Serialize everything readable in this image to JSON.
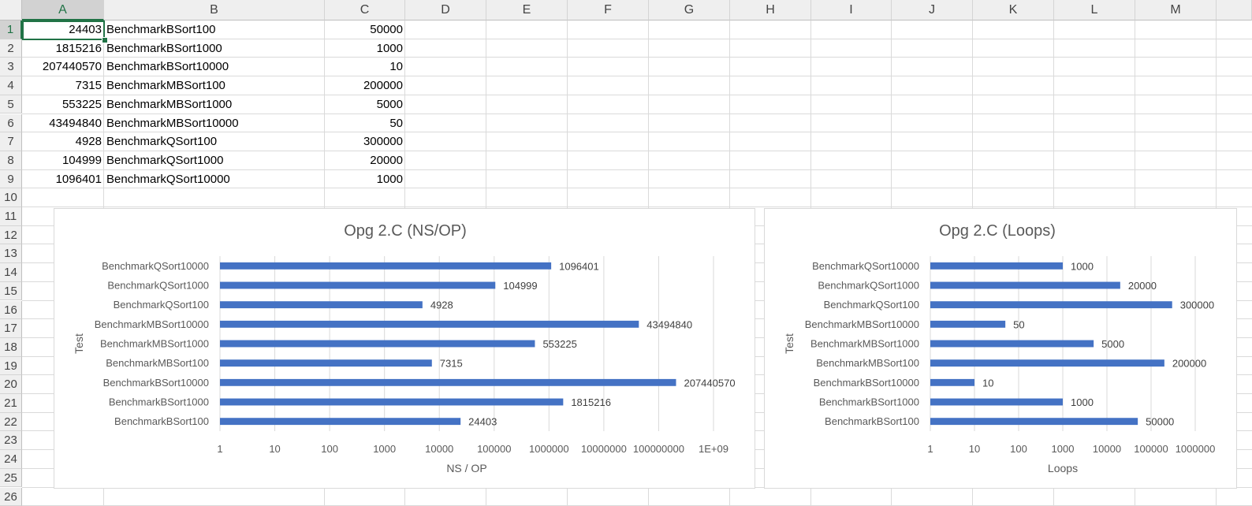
{
  "sheet": {
    "columns": [
      "A",
      "B",
      "C",
      "D",
      "E",
      "F",
      "G",
      "H",
      "I",
      "J",
      "K",
      "L",
      "M"
    ],
    "selected_column": "A",
    "rows": [
      "1",
      "2",
      "3",
      "4",
      "5",
      "6",
      "7",
      "8",
      "9",
      "10",
      "11",
      "12",
      "13",
      "14",
      "15",
      "16",
      "17",
      "18",
      "19",
      "20",
      "21",
      "22",
      "23",
      "24",
      "25",
      "26"
    ],
    "selected_row": "1",
    "data": [
      {
        "a": "24403",
        "b": "BenchmarkBSort100",
        "c": "50000"
      },
      {
        "a": "1815216",
        "b": "BenchmarkBSort1000",
        "c": "1000"
      },
      {
        "a": "207440570",
        "b": "BenchmarkBSort10000",
        "c": "10"
      },
      {
        "a": "7315",
        "b": "BenchmarkMBSort100",
        "c": "200000"
      },
      {
        "a": "553225",
        "b": "BenchmarkMBSort1000",
        "c": "5000"
      },
      {
        "a": "43494840",
        "b": "BenchmarkMBSort10000",
        "c": "50"
      },
      {
        "a": "4928",
        "b": "BenchmarkQSort100",
        "c": "300000"
      },
      {
        "a": "104999",
        "b": "BenchmarkQSort1000",
        "c": "20000"
      },
      {
        "a": "1096401",
        "b": "BenchmarkQSort10000",
        "c": "1000"
      }
    ]
  },
  "chart_data": [
    {
      "type": "bar",
      "orientation": "horizontal",
      "title": "Opg 2.C (NS/OP)",
      "xlabel": "NS / OP",
      "ylabel": "Test",
      "xscale": "log",
      "xlim": [
        1,
        1000000000
      ],
      "xticks": [
        "1",
        "10",
        "100",
        "1000",
        "10000",
        "100000",
        "1000000",
        "10000000",
        "100000000",
        "1E+09"
      ],
      "categories": [
        "BenchmarkBSort100",
        "BenchmarkBSort1000",
        "BenchmarkBSort10000",
        "BenchmarkMBSort100",
        "BenchmarkMBSort1000",
        "BenchmarkMBSort10000",
        "BenchmarkQSort100",
        "BenchmarkQSort1000",
        "BenchmarkQSort10000"
      ],
      "values": [
        24403,
        1815216,
        207440570,
        7315,
        553225,
        43494840,
        4928,
        104999,
        1096401
      ],
      "value_labels": [
        "24403",
        "1815216",
        "207440570",
        "7315",
        "553225",
        "43494840",
        "4928",
        "104999",
        "1096401"
      ],
      "bar_color": "#4472c4",
      "grid": true
    },
    {
      "type": "bar",
      "orientation": "horizontal",
      "title": "Opg 2.C (Loops)",
      "xlabel": "Loops",
      "ylabel": "Test",
      "xscale": "log",
      "xlim": [
        1,
        1000000
      ],
      "xticks": [
        "1",
        "10",
        "100",
        "1000",
        "10000",
        "100000",
        "1000000"
      ],
      "categories": [
        "BenchmarkBSort100",
        "BenchmarkBSort1000",
        "BenchmarkBSort10000",
        "BenchmarkMBSort100",
        "BenchmarkMBSort1000",
        "BenchmarkMBSort10000",
        "BenchmarkQSort100",
        "BenchmarkQSort1000",
        "BenchmarkQSort10000"
      ],
      "values": [
        50000,
        1000,
        10,
        200000,
        5000,
        50,
        300000,
        20000,
        1000
      ],
      "value_labels": [
        "50000",
        "1000",
        "10",
        "200000",
        "5000",
        "50",
        "300000",
        "20000",
        "1000"
      ],
      "bar_color": "#4472c4",
      "grid": true
    }
  ]
}
